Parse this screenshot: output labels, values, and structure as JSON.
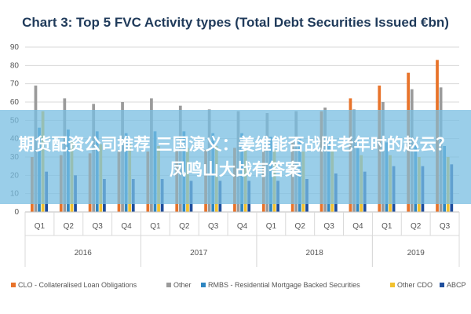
{
  "overlay": {
    "text": "期货配资公司推荐 三国演义：姜维能否战胜老年时的赵云？凤鸣山大战有答案"
  },
  "chart_data": {
    "type": "bar",
    "title": "Chart 3: Top 5 FVC Activity types (Total Debt Securities Issued €bn)",
    "xlabel": "",
    "ylabel": "",
    "ylim": [
      0,
      90
    ],
    "yticks": [
      0,
      10,
      20,
      30,
      40,
      50,
      60,
      70,
      80,
      90
    ],
    "grid": true,
    "legend_position": "bottom",
    "categories": [
      "Q1",
      "Q2",
      "Q3",
      "Q4",
      "Q1",
      "Q2",
      "Q3",
      "Q4",
      "Q1",
      "Q2",
      "Q3",
      "Q4",
      "Q1",
      "Q2",
      "Q3"
    ],
    "years": [
      {
        "label": "2016",
        "start": 0,
        "end": 3
      },
      {
        "label": "2017",
        "start": 4,
        "end": 7
      },
      {
        "label": "2018",
        "start": 8,
        "end": 11
      },
      {
        "label": "2019",
        "start": 12,
        "end": 14
      }
    ],
    "series": [
      {
        "name": "CLO - Collateralised Loan Obligations",
        "color": "#e8732a",
        "values": [
          30,
          31,
          32,
          33,
          33,
          34,
          34,
          35,
          35,
          38,
          55,
          62,
          69,
          76,
          83
        ]
      },
      {
        "name": "Other",
        "color": "#9b9b9b",
        "values": [
          69,
          62,
          59,
          60,
          62,
          58,
          56,
          55,
          54,
          55,
          57,
          56,
          60,
          67,
          68
        ]
      },
      {
        "name": "RMBS - Residential Mortgage Backed Securities",
        "color": "#2e86c1",
        "values": [
          46,
          45,
          44,
          43,
          44,
          44,
          43,
          43,
          41,
          40,
          40,
          39,
          38,
          37,
          36
        ]
      },
      {
        "name": "Other CDO",
        "color": "#f2c12e",
        "values": [
          55,
          38,
          37,
          37,
          36,
          35,
          36,
          35,
          34,
          33,
          33,
          31,
          31,
          30,
          30
        ]
      },
      {
        "name": "ABCP",
        "color": "#1f4e9c",
        "values": [
          22,
          20,
          18,
          18,
          18,
          17,
          17,
          17,
          17,
          18,
          21,
          22,
          25,
          25,
          26
        ]
      }
    ]
  }
}
